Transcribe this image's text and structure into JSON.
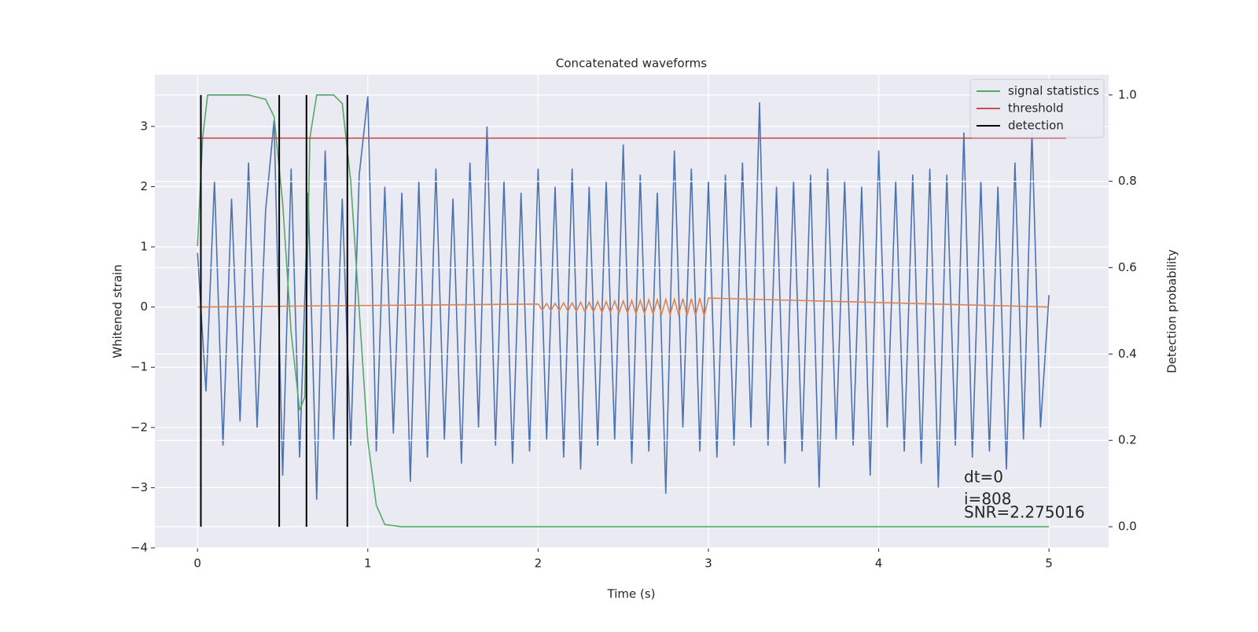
{
  "chart_data": {
    "type": "line",
    "title": "Concatenated waveforms",
    "xlabel": "Time (s)",
    "ylabel": "Whitened strain",
    "y2label": "Detection probability",
    "xlim": [
      -0.25,
      5.35
    ],
    "xticks": [
      0,
      1,
      2,
      3,
      4,
      5
    ],
    "ylim": [
      -4,
      3.86
    ],
    "yticks": [
      {
        "value": -4,
        "label": "−4"
      },
      {
        "value": -3,
        "label": "−3"
      },
      {
        "value": -2,
        "label": "−2"
      },
      {
        "value": -1,
        "label": "−1"
      },
      0,
      1,
      2,
      3
    ],
    "y2lim": [
      -0.049,
      1.047
    ],
    "y2ticks": [
      {
        "value": 0,
        "label": "0.0"
      },
      0.2,
      0.4,
      0.6,
      0.8,
      {
        "value": 1,
        "label": "1.0"
      }
    ],
    "grid": true,
    "legend": "upper right",
    "series": [
      {
        "color": "#4c72b0",
        "x": [
          0,
          0.05,
          0.1,
          0.15,
          0.2,
          0.25,
          0.3,
          0.35,
          0.4,
          0.45,
          0.5,
          0.55,
          0.6,
          0.65,
          0.7,
          0.75,
          0.8,
          0.85,
          0.9,
          0.95,
          1,
          1.05,
          1.1,
          1.15,
          1.2,
          1.25,
          1.3,
          1.35,
          1.4,
          1.45,
          1.5,
          1.55,
          1.6,
          1.65,
          1.7,
          1.75,
          1.8,
          1.85,
          1.9,
          1.95,
          2,
          2.05,
          2.1,
          2.15,
          2.2,
          2.25,
          2.3,
          2.35,
          2.4,
          2.45,
          2.5,
          2.55,
          2.6,
          2.65,
          2.7,
          2.75,
          2.8,
          2.85,
          2.9,
          2.95,
          3,
          3.05,
          3.1,
          3.15,
          3.2,
          3.25,
          3.3,
          3.35,
          3.4,
          3.45,
          3.5,
          3.55,
          3.6,
          3.65,
          3.7,
          3.75,
          3.8,
          3.85,
          3.9,
          3.95,
          4,
          4.05,
          4.1,
          4.15,
          4.2,
          4.25,
          4.3,
          4.35,
          4.4,
          4.45,
          4.5,
          4.55,
          4.6,
          4.65,
          4.7,
          4.75,
          4.8,
          4.85,
          4.9,
          4.95,
          5
        ],
        "values": [
          0.9,
          -1.4,
          2.1,
          -2.3,
          1.8,
          -1.9,
          2.4,
          -2.0,
          1.6,
          3.1,
          -2.8,
          2.3,
          -2.5,
          1.9,
          -3.2,
          2.6,
          -2.2,
          1.8,
          -2.3,
          2.2,
          3.5,
          -2.4,
          2.0,
          -2.1,
          1.9,
          -2.9,
          2.1,
          -2.5,
          2.3,
          -2.2,
          1.8,
          -2.6,
          2.4,
          -2.0,
          3.0,
          -2.3,
          2.1,
          -2.6,
          1.9,
          -2.4,
          2.3,
          -2.2,
          2.0,
          -2.5,
          2.3,
          -2.7,
          2.0,
          -2.3,
          2.1,
          -2.2,
          2.7,
          -2.6,
          2.2,
          -2.4,
          1.9,
          -3.1,
          2.6,
          -2.0,
          2.3,
          -2.4,
          2.1,
          -2.5,
          2.2,
          -2.3,
          2.4,
          -2.0,
          3.4,
          -2.3,
          2.0,
          -2.6,
          2.1,
          -2.4,
          2.2,
          -3.0,
          2.3,
          -2.2,
          2.1,
          -2.3,
          2.0,
          -2.8,
          2.6,
          -2.0,
          2.1,
          -2.4,
          2.2,
          -2.6,
          2.3,
          -3.0,
          2.2,
          -2.3,
          2.9,
          -2.5,
          2.1,
          -2.4,
          2.0,
          -2.7,
          2.4,
          -2.2,
          2.9,
          -2.0,
          0.2
        ]
      },
      {
        "color": "#dd8452",
        "x": [
          0,
          2,
          2.025,
          2.05,
          2.075,
          2.1,
          2.125,
          2.15,
          2.175,
          2.2,
          2.225,
          2.25,
          2.275,
          2.3,
          2.325,
          2.35,
          2.375,
          2.4,
          2.425,
          2.45,
          2.475,
          2.5,
          2.525,
          2.55,
          2.575,
          2.6,
          2.625,
          2.65,
          2.675,
          2.7,
          2.725,
          2.75,
          2.775,
          2.8,
          2.825,
          2.85,
          2.875,
          2.9,
          2.925,
          2.95,
          2.975,
          3,
          5
        ],
        "values": [
          0,
          0.05,
          -0.05,
          0.06,
          -0.06,
          0.06,
          -0.06,
          0.07,
          -0.07,
          0.07,
          -0.07,
          0.08,
          -0.08,
          0.08,
          -0.08,
          0.09,
          -0.09,
          0.09,
          -0.09,
          0.1,
          -0.1,
          0.1,
          -0.1,
          0.11,
          -0.11,
          0.11,
          -0.11,
          0.12,
          -0.12,
          0.12,
          -0.12,
          0.13,
          -0.13,
          0.13,
          -0.13,
          0.14,
          -0.14,
          0.14,
          -0.14,
          0.15,
          -0.15,
          0.15,
          0
        ]
      },
      {
        "name": "signal statistics",
        "color": "#55a868",
        "axis": "y2",
        "x": [
          0,
          0.03,
          0.06,
          0.1,
          0.3,
          0.4,
          0.45,
          0.5,
          0.55,
          0.6,
          0.63,
          0.66,
          0.7,
          0.8,
          0.85,
          0.9,
          0.95,
          1,
          1.05,
          1.1,
          1.2,
          5
        ],
        "values": [
          0.65,
          0.9,
          1,
          1,
          1,
          0.99,
          0.95,
          0.75,
          0.45,
          0.27,
          0.3,
          0.9,
          1,
          1,
          0.98,
          0.8,
          0.5,
          0.2,
          0.05,
          0.005,
          0,
          0
        ]
      },
      {
        "name": "threshold",
        "color": "#c44e52",
        "axis": "y2",
        "x": [
          0,
          5.1
        ],
        "values": [
          0.9,
          0.9
        ]
      },
      {
        "name": "detection",
        "color": "#000000",
        "axis": "y2",
        "kind": "vline",
        "x": [
          0.02,
          0.48,
          0.64,
          0.88
        ],
        "span": [
          0,
          1
        ]
      }
    ],
    "annotations": [
      "dt=0",
      "i=808",
      "SNR=2.275016"
    ]
  }
}
